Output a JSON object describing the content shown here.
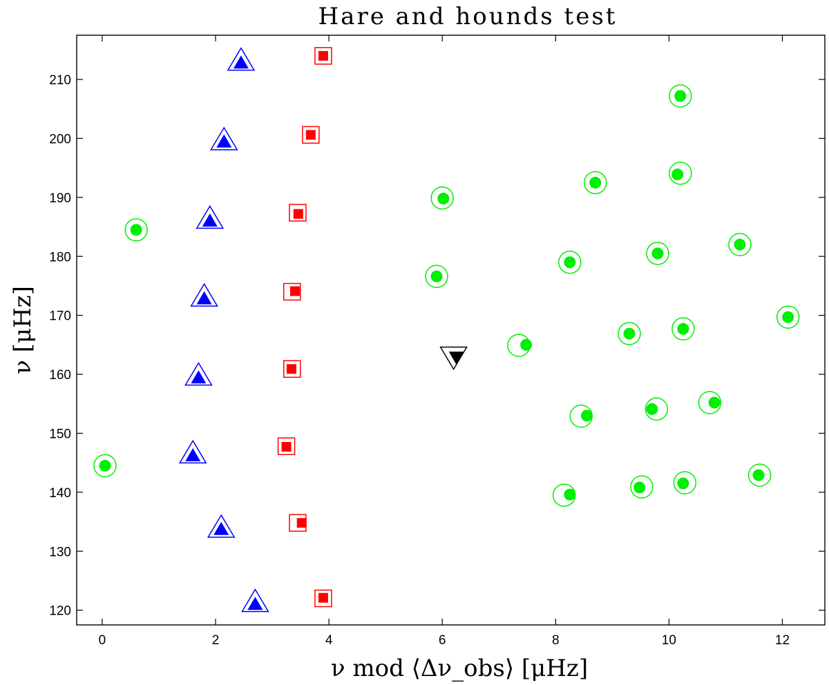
{
  "chart_data": {
    "type": "scatter",
    "title": "Hare and hounds test",
    "xlabel": "ν mod ⟨Δν_obs⟩ [μHz]",
    "ylabel": "ν [μHz]",
    "xlim": [
      -0.45,
      12.75
    ],
    "ylim": [
      117.5,
      217.5
    ],
    "xticks": [
      0,
      2,
      4,
      6,
      8,
      10,
      12
    ],
    "yticks": [
      120,
      130,
      140,
      150,
      160,
      170,
      180,
      190,
      200,
      210
    ],
    "grid": false,
    "legend": "none",
    "series": [
      {
        "marker": "triangle-up",
        "color": "#0000ff",
        "points": [
          {
            "x_open": 2.45,
            "y_open": 213.0,
            "x_filled": 2.45,
            "y_filled": 212.7
          },
          {
            "x_open": 2.15,
            "y_open": 199.5,
            "x_filled": 2.15,
            "y_filled": 199.3
          },
          {
            "x_open": 1.9,
            "y_open": 186.2,
            "x_filled": 1.9,
            "y_filled": 185.9
          },
          {
            "x_open": 1.8,
            "y_open": 173.0,
            "x_filled": 1.8,
            "y_filled": 172.7
          },
          {
            "x_open": 1.7,
            "y_open": 159.6,
            "x_filled": 1.7,
            "y_filled": 159.3
          },
          {
            "x_open": 1.6,
            "y_open": 146.4,
            "x_filled": 1.6,
            "y_filled": 146.1
          },
          {
            "x_open": 2.1,
            "y_open": 133.8,
            "x_filled": 2.1,
            "y_filled": 133.6
          },
          {
            "x_open": 2.7,
            "y_open": 121.2,
            "x_filled": 2.7,
            "y_filled": 120.9
          }
        ]
      },
      {
        "marker": "square",
        "color": "#ff0000",
        "points": [
          {
            "x_open": 3.9,
            "y_open": 214.0,
            "x_filled": 3.9,
            "y_filled": 214.0
          },
          {
            "x_open": 3.68,
            "y_open": 200.6,
            "x_filled": 3.68,
            "y_filled": 200.6
          },
          {
            "x_open": 3.45,
            "y_open": 187.4,
            "x_filled": 3.46,
            "y_filled": 187.2
          },
          {
            "x_open": 3.35,
            "y_open": 174.0,
            "x_filled": 3.4,
            "y_filled": 174.1
          },
          {
            "x_open": 3.35,
            "y_open": 160.9,
            "x_filled": 3.34,
            "y_filled": 160.9
          },
          {
            "x_open": 3.25,
            "y_open": 147.8,
            "x_filled": 3.25,
            "y_filled": 147.7
          },
          {
            "x_open": 3.45,
            "y_open": 134.8,
            "x_filled": 3.52,
            "y_filled": 134.8
          },
          {
            "x_open": 3.9,
            "y_open": 122.0,
            "x_filled": 3.9,
            "y_filled": 122.1
          }
        ]
      },
      {
        "marker": "circle",
        "color": "#00ee00",
        "points": [
          {
            "x_open": 0.05,
            "y_open": 144.5,
            "x_filled": 0.05,
            "y_filled": 144.5
          },
          {
            "x_open": 0.6,
            "y_open": 184.5,
            "x_filled": 0.6,
            "y_filled": 184.5
          },
          {
            "x_open": 6.0,
            "y_open": 189.9,
            "x_filled": 6.02,
            "y_filled": 189.8
          },
          {
            "x_open": 5.9,
            "y_open": 176.6,
            "x_filled": 5.9,
            "y_filled": 176.6
          },
          {
            "x_open": 7.35,
            "y_open": 164.9,
            "x_filled": 7.48,
            "y_filled": 165.0
          },
          {
            "x_open": 8.7,
            "y_open": 192.5,
            "x_filled": 8.7,
            "y_filled": 192.5
          },
          {
            "x_open": 8.25,
            "y_open": 179.0,
            "x_filled": 8.25,
            "y_filled": 179.0
          },
          {
            "x_open": 8.45,
            "y_open": 152.9,
            "x_filled": 8.55,
            "y_filled": 153.0
          },
          {
            "x_open": 8.15,
            "y_open": 139.5,
            "x_filled": 8.25,
            "y_filled": 139.6
          },
          {
            "x_open": 9.3,
            "y_open": 166.9,
            "x_filled": 9.3,
            "y_filled": 166.9
          },
          {
            "x_open": 9.8,
            "y_open": 180.5,
            "x_filled": 9.8,
            "y_filled": 180.5
          },
          {
            "x_open": 9.78,
            "y_open": 154.1,
            "x_filled": 9.7,
            "y_filled": 154.1
          },
          {
            "x_open": 9.52,
            "y_open": 140.9,
            "x_filled": 9.48,
            "y_filled": 140.8
          },
          {
            "x_open": 10.2,
            "y_open": 207.2,
            "x_filled": 10.2,
            "y_filled": 207.2
          },
          {
            "x_open": 10.2,
            "y_open": 194.1,
            "x_filled": 10.15,
            "y_filled": 193.9
          },
          {
            "x_open": 10.25,
            "y_open": 167.7,
            "x_filled": 10.25,
            "y_filled": 167.7
          },
          {
            "x_open": 10.28,
            "y_open": 141.6,
            "x_filled": 10.25,
            "y_filled": 141.5
          },
          {
            "x_open": 10.72,
            "y_open": 155.2,
            "x_filled": 10.8,
            "y_filled": 155.2
          },
          {
            "x_open": 11.25,
            "y_open": 182.0,
            "x_filled": 11.25,
            "y_filled": 182.0
          },
          {
            "x_open": 12.1,
            "y_open": 169.7,
            "x_filled": 12.1,
            "y_filled": 169.7
          },
          {
            "x_open": 11.6,
            "y_open": 142.9,
            "x_filled": 11.58,
            "y_filled": 142.9
          }
        ]
      },
      {
        "marker": "triangle-down",
        "color": "#000000",
        "points": [
          {
            "x_open": 6.2,
            "y_open": 163.2,
            "x_filled": 6.25,
            "y_filled": 163.0
          }
        ]
      }
    ]
  }
}
